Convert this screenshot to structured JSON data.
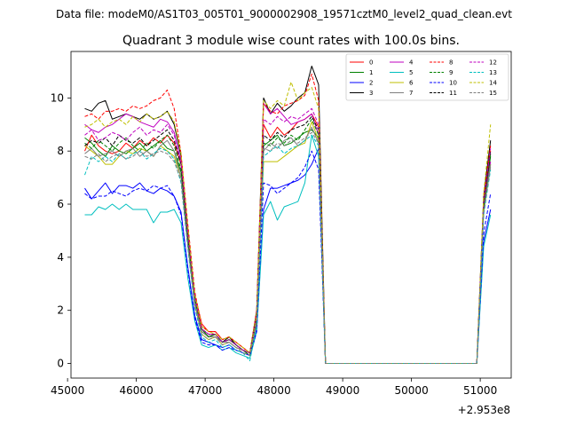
{
  "figure": {
    "suptitle": "Data file: modeM0/AS1T03_005T01_9000002908_19571cztM0_level2_quad_clean.evt"
  },
  "chart_data": {
    "type": "line",
    "title": "Quadrant 3 module wise count rates with 100.0s bins.",
    "xlabel": "",
    "ylabel": "",
    "x_offset_label": "+2.953e8",
    "xlim": [
      45050,
      51450
    ],
    "ylim": [
      -0.55,
      11.75
    ],
    "x_ticks": [
      45000,
      46000,
      47000,
      48000,
      49000,
      50000,
      51000
    ],
    "y_ticks": [
      0,
      2,
      4,
      6,
      8,
      10
    ],
    "grid": false,
    "legend": {
      "position": "top-right",
      "columns": 4
    },
    "x": [
      45250,
      45350,
      45450,
      45550,
      45650,
      45750,
      45850,
      45950,
      46050,
      46150,
      46250,
      46350,
      46450,
      46550,
      46650,
      46750,
      46850,
      46950,
      47050,
      47150,
      47250,
      47350,
      47450,
      47550,
      47650,
      47750,
      47850,
      47950,
      48050,
      48150,
      48250,
      48350,
      48450,
      48550,
      48650,
      48750,
      48850,
      48950,
      49050,
      49150,
      49250,
      49350,
      49450,
      49550,
      49650,
      49750,
      49850,
      49950,
      50050,
      50150,
      50250,
      50350,
      50450,
      50550,
      50650,
      50750,
      50850,
      50950,
      51050,
      51150
    ],
    "series": [
      {
        "name": "0",
        "color": "#ff0000",
        "dash": "solid",
        "values": [
          8.0,
          8.6,
          8.2,
          8.0,
          7.9,
          8.0,
          8.3,
          8.1,
          8.4,
          8.2,
          8.5,
          8.3,
          8.6,
          8.3,
          7.5,
          5.0,
          2.6,
          1.5,
          1.2,
          1.2,
          0.9,
          1.0,
          0.8,
          0.6,
          0.4,
          1.9,
          9.0,
          8.5,
          8.9,
          8.6,
          8.8,
          9.1,
          9.2,
          9.4,
          8.9,
          0.0,
          0.0,
          0.0,
          0.0,
          0.0,
          0.0,
          0.0,
          0.0,
          0.0,
          0.0,
          0.0,
          0.0,
          0.0,
          0.0,
          0.0,
          0.0,
          0.0,
          0.0,
          0.0,
          0.0,
          0.0,
          0.0,
          0.0,
          6.0,
          8.0
        ]
      },
      {
        "name": "1",
        "color": "#008000",
        "dash": "solid",
        "values": [
          8.5,
          8.3,
          8.0,
          7.8,
          8.2,
          8.0,
          7.9,
          8.1,
          8.3,
          8.0,
          8.2,
          8.4,
          8.1,
          8.0,
          7.2,
          4.6,
          2.5,
          1.3,
          1.0,
          1.1,
          0.8,
          0.9,
          0.7,
          0.5,
          0.3,
          1.7,
          8.2,
          8.4,
          8.6,
          8.2,
          8.3,
          8.5,
          8.7,
          8.8,
          8.5,
          0.0,
          0.0,
          0.0,
          0.0,
          0.0,
          0.0,
          0.0,
          0.0,
          0.0,
          0.0,
          0.0,
          0.0,
          0.0,
          0.0,
          0.0,
          0.0,
          0.0,
          0.0,
          0.0,
          0.0,
          0.0,
          0.0,
          0.0,
          5.8,
          7.8
        ]
      },
      {
        "name": "2",
        "color": "#0000ff",
        "dash": "solid",
        "values": [
          6.6,
          6.2,
          6.5,
          6.8,
          6.4,
          6.7,
          6.7,
          6.6,
          6.8,
          6.5,
          6.4,
          6.6,
          6.5,
          6.3,
          5.7,
          3.6,
          1.8,
          0.9,
          0.8,
          0.7,
          0.6,
          0.7,
          0.5,
          0.4,
          0.3,
          1.3,
          5.8,
          6.6,
          6.6,
          6.7,
          6.8,
          6.9,
          7.1,
          7.5,
          8.1,
          0.0,
          0.0,
          0.0,
          0.0,
          0.0,
          0.0,
          0.0,
          0.0,
          0.0,
          0.0,
          0.0,
          0.0,
          0.0,
          0.0,
          0.0,
          0.0,
          0.0,
          0.0,
          0.0,
          0.0,
          0.0,
          0.0,
          0.0,
          4.6,
          5.8
        ]
      },
      {
        "name": "3",
        "color": "#000000",
        "dash": "solid",
        "values": [
          9.6,
          9.5,
          9.8,
          9.9,
          9.2,
          9.3,
          9.4,
          9.3,
          9.2,
          9.4,
          9.2,
          9.3,
          9.5,
          9.0,
          7.8,
          5.0,
          2.4,
          1.2,
          1.0,
          1.1,
          0.8,
          1.0,
          0.7,
          0.5,
          0.4,
          2.0,
          10.0,
          9.4,
          9.8,
          9.5,
          9.7,
          10.0,
          10.2,
          11.2,
          10.5,
          0.0,
          0.0,
          0.0,
          0.0,
          0.0,
          0.0,
          0.0,
          0.0,
          0.0,
          0.0,
          0.0,
          0.0,
          0.0,
          0.0,
          0.0,
          0.0,
          0.0,
          0.0,
          0.0,
          0.0,
          0.0,
          0.0,
          0.0,
          6.3,
          8.4
        ]
      },
      {
        "name": "4",
        "color": "#bf00bf",
        "dash": "solid",
        "values": [
          9.0,
          8.8,
          8.7,
          8.9,
          9.0,
          9.2,
          9.4,
          9.3,
          9.1,
          9.0,
          8.9,
          9.2,
          9.1,
          8.7,
          7.6,
          4.8,
          2.4,
          1.3,
          1.1,
          1.1,
          0.8,
          0.9,
          0.7,
          0.5,
          0.4,
          1.8,
          9.8,
          9.4,
          9.6,
          9.3,
          9.0,
          9.1,
          9.2,
          9.4,
          8.6,
          0.0,
          0.0,
          0.0,
          0.0,
          0.0,
          0.0,
          0.0,
          0.0,
          0.0,
          0.0,
          0.0,
          0.0,
          0.0,
          0.0,
          0.0,
          0.0,
          0.0,
          0.0,
          0.0,
          0.0,
          0.0,
          0.0,
          0.0,
          5.9,
          7.6
        ]
      },
      {
        "name": "5",
        "color": "#00bfbf",
        "dash": "solid",
        "values": [
          5.6,
          5.6,
          5.9,
          5.8,
          6.0,
          5.8,
          6.0,
          5.8,
          5.8,
          5.8,
          5.3,
          5.7,
          5.7,
          5.8,
          5.3,
          3.2,
          1.6,
          0.7,
          0.6,
          0.7,
          0.5,
          0.6,
          0.4,
          0.3,
          0.2,
          1.2,
          5.6,
          6.1,
          5.4,
          5.9,
          6.0,
          6.1,
          6.8,
          8.6,
          7.8,
          0.0,
          0.0,
          0.0,
          0.0,
          0.0,
          0.0,
          0.0,
          0.0,
          0.0,
          0.0,
          0.0,
          0.0,
          0.0,
          0.0,
          0.0,
          0.0,
          0.0,
          0.0,
          0.0,
          0.0,
          0.0,
          0.0,
          0.0,
          4.4,
          5.6
        ]
      },
      {
        "name": "6",
        "color": "#bfbf00",
        "dash": "solid",
        "values": [
          8.2,
          8.0,
          7.8,
          7.5,
          7.5,
          7.8,
          8.0,
          7.9,
          8.1,
          8.0,
          7.8,
          8.2,
          8.0,
          7.8,
          7.0,
          4.4,
          2.2,
          1.1,
          0.9,
          1.0,
          0.7,
          0.8,
          0.6,
          0.5,
          0.3,
          1.6,
          7.6,
          7.6,
          7.6,
          7.8,
          8.0,
          8.2,
          8.3,
          9.1,
          8.4,
          0.0,
          0.0,
          0.0,
          0.0,
          0.0,
          0.0,
          0.0,
          0.0,
          0.0,
          0.0,
          0.0,
          0.0,
          0.0,
          0.0,
          0.0,
          0.0,
          0.0,
          0.0,
          0.0,
          0.0,
          0.0,
          0.0,
          0.0,
          5.7,
          7.5
        ]
      },
      {
        "name": "7",
        "color": "#7f7f7f",
        "dash": "solid",
        "values": [
          7.9,
          8.1,
          7.8,
          7.9,
          8.0,
          7.8,
          8.0,
          8.1,
          7.8,
          8.0,
          7.8,
          8.2,
          8.4,
          8.0,
          7.0,
          4.5,
          2.3,
          1.2,
          1.0,
          1.0,
          0.8,
          0.8,
          0.6,
          0.5,
          0.3,
          1.6,
          8.0,
          8.3,
          8.1,
          8.4,
          8.5,
          8.2,
          8.4,
          8.9,
          8.3,
          0.0,
          0.0,
          0.0,
          0.0,
          0.0,
          0.0,
          0.0,
          0.0,
          0.0,
          0.0,
          0.0,
          0.0,
          0.0,
          0.0,
          0.0,
          0.0,
          0.0,
          0.0,
          0.0,
          0.0,
          0.0,
          0.0,
          0.0,
          5.8,
          7.5
        ]
      },
      {
        "name": "8",
        "color": "#ff0000",
        "dash": "dashed",
        "values": [
          9.3,
          9.4,
          9.2,
          9.5,
          9.5,
          9.6,
          9.5,
          9.7,
          9.6,
          9.7,
          9.9,
          10.0,
          10.3,
          9.6,
          7.9,
          5.2,
          2.7,
          1.4,
          1.2,
          1.2,
          0.9,
          1.0,
          0.8,
          0.6,
          0.4,
          2.0,
          9.8,
          9.5,
          9.4,
          9.7,
          9.8,
          9.9,
          10.1,
          10.9,
          9.9,
          0.0,
          0.0,
          0.0,
          0.0,
          0.0,
          0.0,
          0.0,
          0.0,
          0.0,
          0.0,
          0.0,
          0.0,
          0.0,
          0.0,
          0.0,
          0.0,
          0.0,
          0.0,
          0.0,
          0.0,
          0.0,
          0.0,
          0.0,
          6.2,
          8.2
        ]
      },
      {
        "name": "9",
        "color": "#008000",
        "dash": "dashed",
        "values": [
          8.3,
          8.1,
          8.4,
          8.2,
          8.0,
          8.3,
          8.5,
          8.2,
          8.0,
          8.3,
          8.1,
          8.4,
          8.6,
          8.2,
          7.3,
          4.7,
          2.4,
          1.3,
          1.0,
          1.1,
          0.8,
          0.9,
          0.7,
          0.5,
          0.3,
          1.7,
          8.3,
          8.2,
          8.5,
          8.3,
          8.6,
          8.4,
          8.8,
          9.2,
          8.6,
          0.0,
          0.0,
          0.0,
          0.0,
          0.0,
          0.0,
          0.0,
          0.0,
          0.0,
          0.0,
          0.0,
          0.0,
          0.0,
          0.0,
          0.0,
          0.0,
          0.0,
          0.0,
          0.0,
          0.0,
          0.0,
          0.0,
          0.0,
          5.9,
          7.9
        ]
      },
      {
        "name": "10",
        "color": "#0000ff",
        "dash": "dashed",
        "values": [
          6.4,
          6.2,
          6.3,
          6.3,
          6.5,
          6.4,
          6.3,
          6.5,
          6.6,
          6.5,
          6.7,
          6.6,
          6.7,
          6.3,
          5.6,
          3.5,
          1.7,
          0.8,
          0.7,
          0.7,
          0.5,
          0.6,
          0.5,
          0.4,
          0.3,
          1.2,
          6.8,
          6.7,
          6.4,
          6.6,
          6.8,
          7.0,
          7.4,
          8.0,
          7.3,
          0.0,
          0.0,
          0.0,
          0.0,
          0.0,
          0.0,
          0.0,
          0.0,
          0.0,
          0.0,
          0.0,
          0.0,
          0.0,
          0.0,
          0.0,
          0.0,
          0.0,
          0.0,
          0.0,
          0.0,
          0.0,
          0.0,
          0.0,
          4.9,
          6.4
        ]
      },
      {
        "name": "11",
        "color": "#000000",
        "dash": "dashed",
        "values": [
          8.2,
          8.4,
          8.3,
          8.5,
          8.2,
          8.6,
          8.4,
          8.3,
          8.5,
          8.2,
          8.4,
          8.6,
          8.8,
          8.4,
          7.5,
          4.8,
          2.5,
          1.3,
          1.1,
          1.1,
          0.8,
          0.9,
          0.7,
          0.5,
          0.4,
          1.8,
          8.6,
          8.4,
          8.7,
          8.5,
          8.8,
          8.9,
          9.0,
          9.3,
          8.8,
          0.0,
          0.0,
          0.0,
          0.0,
          0.0,
          0.0,
          0.0,
          0.0,
          0.0,
          0.0,
          0.0,
          0.0,
          0.0,
          0.0,
          0.0,
          0.0,
          0.0,
          0.0,
          0.0,
          0.0,
          0.0,
          0.0,
          0.0,
          6.0,
          8.0
        ]
      },
      {
        "name": "12",
        "color": "#bf00bf",
        "dash": "dashed",
        "values": [
          8.6,
          8.8,
          8.4,
          8.5,
          8.7,
          8.6,
          8.4,
          8.7,
          8.9,
          8.6,
          8.8,
          8.7,
          9.0,
          8.6,
          7.6,
          4.9,
          2.5,
          1.3,
          1.1,
          1.1,
          0.8,
          0.9,
          0.7,
          0.5,
          0.4,
          1.8,
          9.2,
          9.0,
          9.3,
          9.1,
          9.3,
          9.2,
          9.4,
          9.6,
          9.0,
          0.0,
          0.0,
          0.0,
          0.0,
          0.0,
          0.0,
          0.0,
          0.0,
          0.0,
          0.0,
          0.0,
          0.0,
          0.0,
          0.0,
          0.0,
          0.0,
          0.0,
          0.0,
          0.0,
          0.0,
          0.0,
          0.0,
          0.0,
          6.1,
          8.1
        ]
      },
      {
        "name": "13",
        "color": "#00bfbf",
        "dash": "dashed",
        "values": [
          7.1,
          7.8,
          7.6,
          7.8,
          7.6,
          7.9,
          7.7,
          7.9,
          8.0,
          7.7,
          7.9,
          8.1,
          8.0,
          7.7,
          6.8,
          4.3,
          2.1,
          1.0,
          0.8,
          0.9,
          0.6,
          0.7,
          0.5,
          0.4,
          0.1,
          1.4,
          7.8,
          8.0,
          8.2,
          7.9,
          8.1,
          8.2,
          8.4,
          8.6,
          8.2,
          0.0,
          0.0,
          0.0,
          0.0,
          0.0,
          0.0,
          0.0,
          0.0,
          0.0,
          0.0,
          0.0,
          0.0,
          0.0,
          0.0,
          0.0,
          0.0,
          0.0,
          0.0,
          0.0,
          0.0,
          0.0,
          0.0,
          0.0,
          5.6,
          7.3
        ]
      },
      {
        "name": "14",
        "color": "#bfbf00",
        "dash": "dashed",
        "values": [
          8.9,
          9.0,
          9.2,
          8.9,
          9.1,
          9.2,
          9.0,
          9.3,
          9.1,
          9.4,
          9.2,
          9.3,
          9.5,
          9.1,
          7.9,
          5.1,
          2.6,
          1.4,
          1.2,
          1.1,
          0.9,
          1.0,
          0.8,
          0.6,
          0.4,
          1.9,
          9.9,
          9.6,
          9.9,
          9.7,
          10.6,
          9.9,
          10.2,
          10.4,
          9.6,
          0.0,
          0.0,
          0.0,
          0.0,
          0.0,
          0.0,
          0.0,
          0.0,
          0.0,
          0.0,
          0.0,
          0.0,
          0.0,
          0.0,
          0.0,
          0.0,
          0.0,
          0.0,
          0.0,
          0.0,
          0.0,
          0.0,
          0.0,
          6.4,
          9.0
        ]
      },
      {
        "name": "15",
        "color": "#7f7f7f",
        "dash": "dashed",
        "values": [
          7.8,
          7.7,
          7.9,
          7.6,
          7.8,
          7.9,
          7.7,
          7.8,
          8.0,
          7.8,
          7.9,
          8.0,
          7.9,
          7.6,
          6.9,
          4.4,
          2.2,
          1.1,
          0.9,
          1.0,
          0.7,
          0.8,
          0.6,
          0.4,
          0.3,
          1.5,
          8.1,
          8.0,
          8.3,
          8.2,
          8.4,
          8.3,
          8.5,
          8.7,
          8.3,
          0.0,
          0.0,
          0.0,
          0.0,
          0.0,
          0.0,
          0.0,
          0.0,
          0.0,
          0.0,
          0.0,
          0.0,
          0.0,
          0.0,
          0.0,
          0.0,
          0.0,
          0.0,
          0.0,
          0.0,
          0.0,
          0.0,
          0.0,
          5.7,
          7.4
        ]
      }
    ]
  }
}
